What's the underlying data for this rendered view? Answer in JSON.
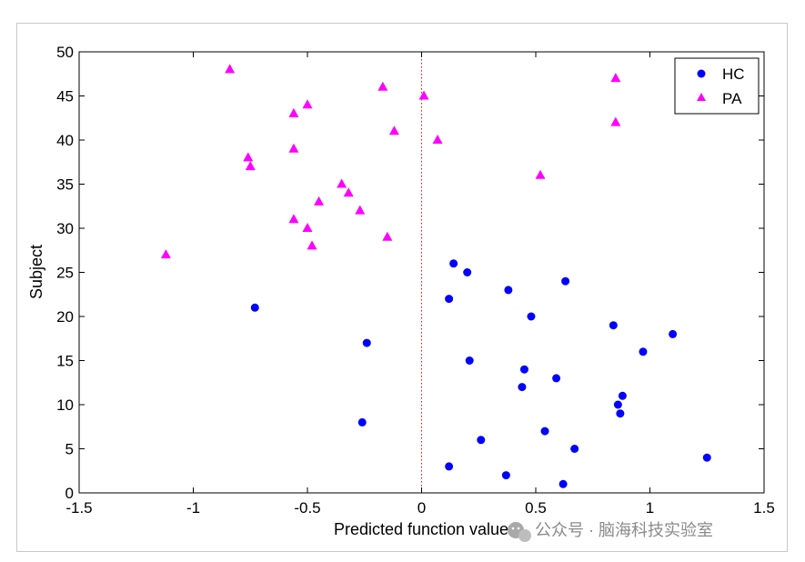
{
  "chart_data": {
    "type": "scatter",
    "xlabel": "Predicted function value",
    "ylabel": "Subject",
    "xlim": [
      -1.5,
      1.5
    ],
    "ylim": [
      0,
      50
    ],
    "x_ticks": [
      -1.5,
      -1,
      -0.5,
      0,
      0.5,
      1,
      1.5
    ],
    "x_tick_labels": [
      "-1.5",
      "-1",
      "-0.5",
      "0",
      "0.5",
      "1",
      "1.5"
    ],
    "y_ticks": [
      0,
      5,
      10,
      15,
      20,
      25,
      30,
      35,
      40,
      45,
      50
    ],
    "y_tick_labels": [
      "0",
      "5",
      "10",
      "15",
      "20",
      "25",
      "30",
      "35",
      "40",
      "45",
      "50"
    ],
    "grid": false,
    "legend_position": "top-right",
    "reference_line": {
      "x": 0,
      "style": "dotted",
      "color": "#ff0000"
    },
    "series": [
      {
        "name": "HC",
        "marker": "circle",
        "color": "#0000ff",
        "points": [
          [
            0.62,
            1
          ],
          [
            0.37,
            2
          ],
          [
            0.12,
            3
          ],
          [
            1.25,
            4
          ],
          [
            0.67,
            5
          ],
          [
            0.26,
            6
          ],
          [
            0.54,
            7
          ],
          [
            -0.26,
            8
          ],
          [
            0.87,
            9
          ],
          [
            0.86,
            10
          ],
          [
            0.88,
            11
          ],
          [
            0.44,
            12
          ],
          [
            0.59,
            13
          ],
          [
            0.45,
            14
          ],
          [
            0.21,
            15
          ],
          [
            0.97,
            16
          ],
          [
            -0.24,
            17
          ],
          [
            1.1,
            18
          ],
          [
            0.84,
            19
          ],
          [
            0.48,
            20
          ],
          [
            -0.73,
            21
          ],
          [
            0.12,
            22
          ],
          [
            0.38,
            23
          ],
          [
            0.63,
            24
          ],
          [
            0.2,
            25
          ],
          [
            0.14,
            26
          ]
        ]
      },
      {
        "name": "PA",
        "marker": "triangle",
        "color": "#ff00ff",
        "points": [
          [
            -1.12,
            27
          ],
          [
            -0.48,
            28
          ],
          [
            -0.15,
            29
          ],
          [
            -0.5,
            30
          ],
          [
            -0.56,
            31
          ],
          [
            -0.27,
            32
          ],
          [
            -0.45,
            33
          ],
          [
            -0.32,
            34
          ],
          [
            -0.35,
            35
          ],
          [
            0.52,
            36
          ],
          [
            -0.75,
            37
          ],
          [
            -0.76,
            38
          ],
          [
            -0.56,
            39
          ],
          [
            0.07,
            40
          ],
          [
            -0.12,
            41
          ],
          [
            0.85,
            42
          ],
          [
            -0.56,
            43
          ],
          [
            -0.5,
            44
          ],
          [
            0.01,
            45
          ],
          [
            -0.17,
            46
          ],
          [
            0.85,
            47
          ],
          [
            -0.84,
            48
          ]
        ]
      }
    ]
  },
  "watermark": {
    "text": "公众号 · 脑海科技实验室",
    "icon": "wechat-icon"
  }
}
